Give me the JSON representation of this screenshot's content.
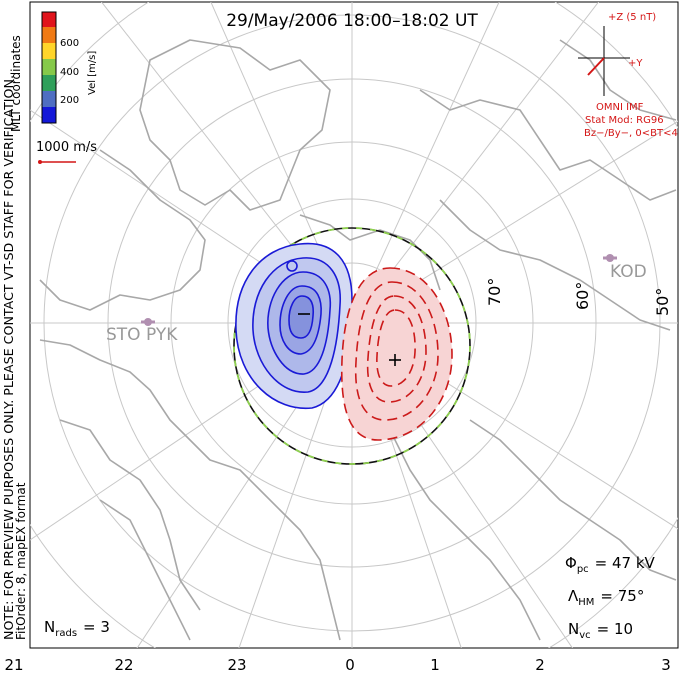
{
  "title": "29/May/2006 18:00–18:02 UT",
  "colorbar": {
    "label": "Vel [m/s]",
    "ticks": [
      "600",
      "400",
      "200"
    ],
    "colors": [
      "#e0141c",
      "#f07a14",
      "#ffd52a",
      "#86c94a",
      "#2f9f5a",
      "#4f6ec2",
      "#1418d8"
    ]
  },
  "coordinate_system": "MLT coordinates",
  "reference_vector": {
    "label": "1000 m/s",
    "color": "#d41616"
  },
  "imf": {
    "z_label": "+Z (5 nT)",
    "y_label": "+Y",
    "source": "OMNI IMF",
    "stat_mod": "Stat Mod: RG96",
    "condition": "Bz−/By−, 0<BT<4",
    "color": "#d41616"
  },
  "side_note_1": "NOTE: FOR PREVIEW PURPOSES ONLY. PLEASE CONTACT VT-SD STAFF FOR VERIFICATION.",
  "side_note_2": "FitOrder: 8, mapEX format",
  "latitude_labels": [
    "70°",
    "60°",
    "50°"
  ],
  "stations": [
    "STO",
    "PYK",
    "KOD"
  ],
  "min_marker": "−",
  "max_marker": "+",
  "params": {
    "phi_symbol": "Φ",
    "phi_sub": "pc",
    "phi_value": "= 47 kV",
    "lambda_symbol": "Λ",
    "lambda_sub": "HM",
    "lambda_value": "= 75°",
    "nvc_symbol": "N",
    "nvc_sub": "vc",
    "nvc_value": "= 10",
    "nrads_symbol": "N",
    "nrads_sub": "rads",
    "nrads_value": "= 3"
  },
  "mlt_labels": [
    "21",
    "22",
    "23",
    "0",
    "1",
    "2",
    "3"
  ],
  "contour_colors": {
    "negative": "#1a1ad6",
    "positive": "#cc1a1a",
    "boundary_dash": "#8fd14f"
  }
}
